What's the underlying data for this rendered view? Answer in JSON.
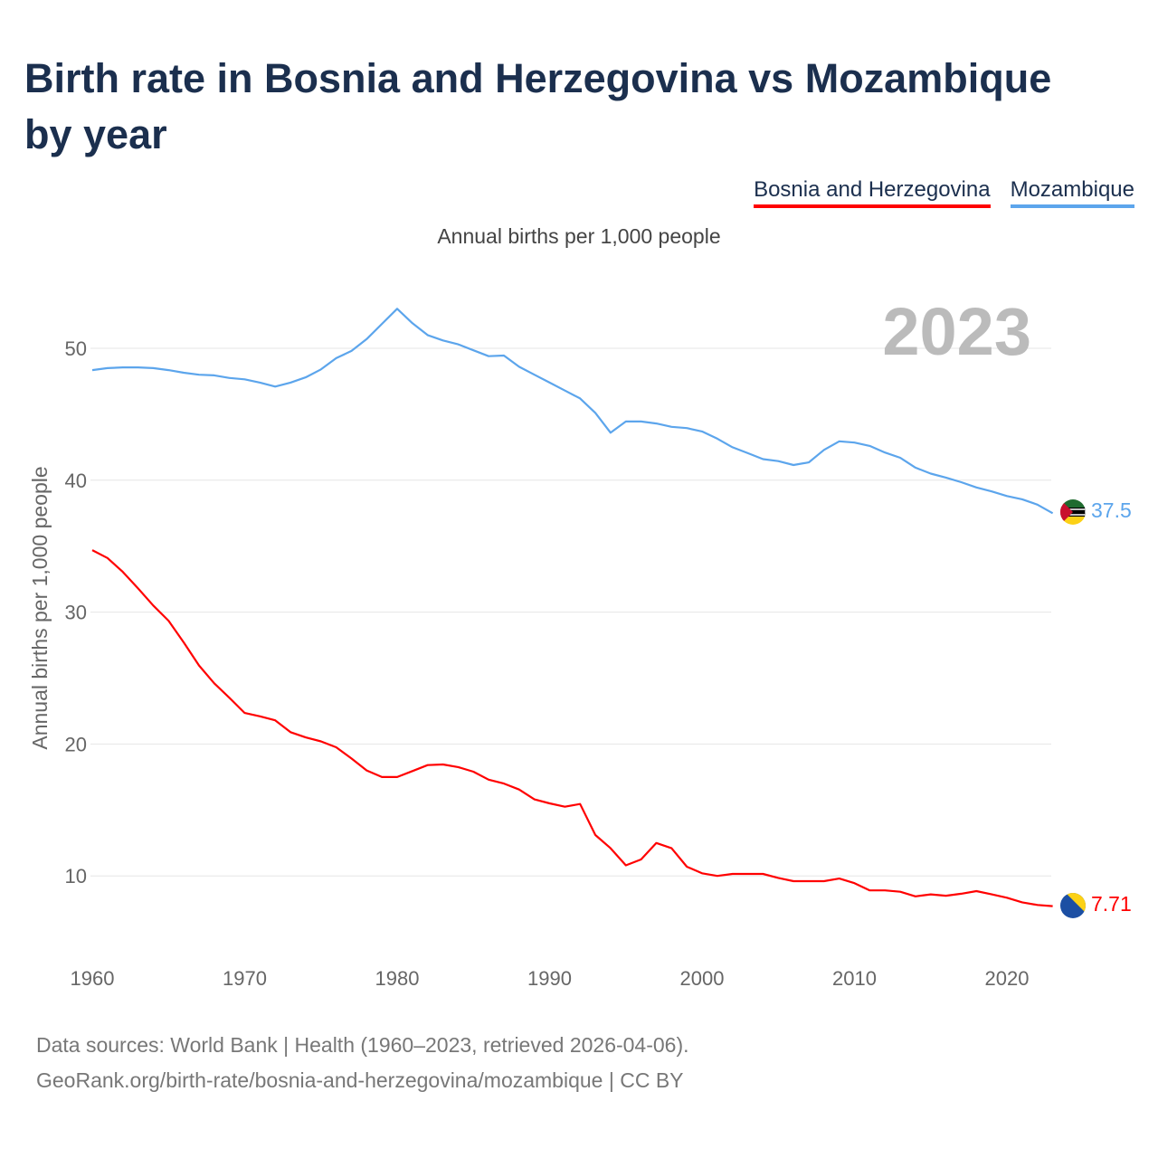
{
  "title": "Birth rate in Bosnia and Herzegovina vs Mozambique by year",
  "footer": {
    "line1": "Data sources: World Bank | Health (1960–2023, retrieved 2026-04-06).",
    "line2": "GeoRank.org/birth-rate/bosnia-and-herzegovina/mozambique | CC BY"
  },
  "chart_data": {
    "type": "line",
    "title": "Birth rate in Bosnia and Herzegovina vs Mozambique by year",
    "subtitle": "Annual births per 1,000 people",
    "ylabel": "Annual births per 1,000 people",
    "xlabel": "",
    "year_label": "2023",
    "xlim": [
      1960,
      2023
    ],
    "ylim": [
      5,
      55
    ],
    "x_ticks": [
      "1960",
      "1970",
      "1980",
      "1990",
      "2000",
      "2010",
      "2020"
    ],
    "y_ticks": [
      "10",
      "20",
      "30",
      "40",
      "50"
    ],
    "grid": true,
    "legend_position": "top-right",
    "x_start": 1960,
    "series": [
      {
        "name": "Bosnia and Herzegovina",
        "color": "#ff0000",
        "end_label": "7.71",
        "values": [
          34.7,
          34.1,
          33.05,
          31.8,
          30.5,
          29.35,
          27.7,
          25.95,
          24.6,
          23.5,
          22.35,
          22.1,
          21.8,
          20.9,
          20.5,
          20.2,
          19.75,
          18.9,
          18.0,
          17.5,
          17.5,
          17.95,
          18.4,
          18.45,
          18.25,
          17.9,
          17.3,
          17.0,
          16.55,
          15.8,
          15.5,
          15.25,
          15.45,
          13.1,
          12.1,
          10.8,
          11.25,
          12.5,
          12.1,
          10.7,
          10.2,
          10.0,
          10.15,
          10.15,
          10.15,
          9.85,
          9.6,
          9.6,
          9.6,
          9.8,
          9.45,
          8.9,
          8.9,
          8.8,
          8.45,
          8.6,
          8.5,
          8.65,
          8.85,
          8.6,
          8.35,
          8.0,
          7.8,
          7.71
        ]
      },
      {
        "name": "Mozambique",
        "color": "#5ca5ec",
        "end_label": "37.5",
        "values": [
          48.35,
          48.5,
          48.55,
          48.55,
          48.5,
          48.35,
          48.15,
          48.0,
          47.95,
          47.75,
          47.65,
          47.4,
          47.1,
          47.4,
          47.8,
          48.4,
          49.25,
          49.8,
          50.7,
          51.85,
          53.0,
          51.9,
          51.0,
          50.6,
          50.3,
          49.85,
          49.4,
          49.45,
          48.6,
          48.0,
          47.4,
          46.8,
          46.2,
          45.1,
          43.6,
          44.45,
          44.45,
          44.3,
          44.05,
          43.95,
          43.7,
          43.15,
          42.5,
          42.05,
          41.6,
          41.45,
          41.15,
          41.35,
          42.3,
          42.95,
          42.85,
          42.6,
          42.1,
          41.7,
          40.95,
          40.5,
          40.2,
          39.85,
          39.45,
          39.15,
          38.8,
          38.55,
          38.15,
          37.5
        ]
      }
    ]
  }
}
